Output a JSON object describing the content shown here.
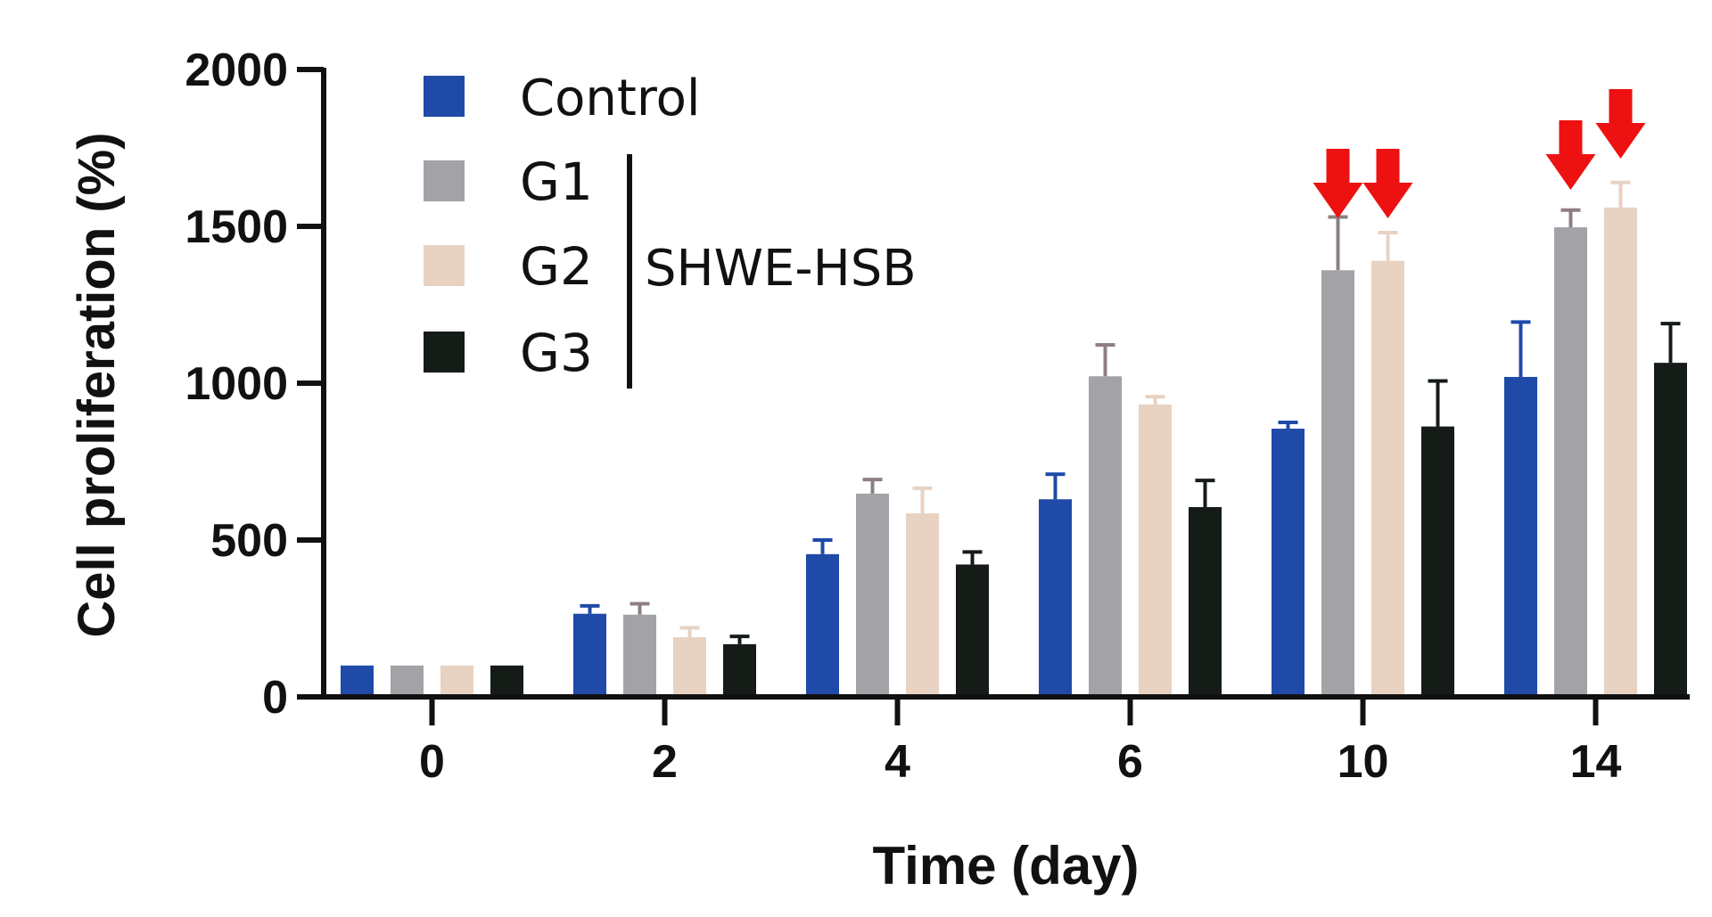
{
  "chart_data": {
    "type": "bar",
    "title": "",
    "xlabel": "Time (day)",
    "ylabel": "Cell proliferation (%)",
    "categories": [
      "0",
      "2",
      "4",
      "6",
      "10",
      "14"
    ],
    "ylim": [
      0,
      2000
    ],
    "yticks": [
      0,
      500,
      1000,
      1500,
      2000
    ],
    "grid": false,
    "legend_position": "top-left",
    "series": [
      {
        "name": "Control",
        "color": "#1f4aa8",
        "values": [
          100,
          265,
          455,
          630,
          855,
          1020
        ],
        "errors": [
          0,
          25,
          45,
          80,
          20,
          175
        ]
      },
      {
        "name": "G1",
        "color": "#a3a2a7",
        "values": [
          100,
          262,
          648,
          1022,
          1360,
          1497
        ],
        "errors": [
          0,
          35,
          45,
          100,
          170,
          55
        ]
      },
      {
        "name": "G2",
        "color": "#e8d2c2",
        "values": [
          100,
          190,
          585,
          932,
          1390,
          1560
        ],
        "errors": [
          0,
          30,
          80,
          25,
          90,
          80
        ]
      },
      {
        "name": "G3",
        "color": "#151b17",
        "values": [
          100,
          168,
          422,
          605,
          862,
          1065
        ],
        "errors": [
          0,
          25,
          40,
          85,
          145,
          125
        ]
      }
    ],
    "group_label": "SHWE-HSB",
    "group_members": [
      "G1",
      "G2",
      "G3"
    ],
    "annotations": [
      {
        "type": "arrow-down",
        "color": "#ee1111",
        "category": "10",
        "series": "G1"
      },
      {
        "type": "arrow-down",
        "color": "#ee1111",
        "category": "10",
        "series": "G2"
      },
      {
        "type": "arrow-down",
        "color": "#ee1111",
        "category": "14",
        "series": "G1"
      },
      {
        "type": "arrow-down",
        "color": "#ee1111",
        "category": "14",
        "series": "G2"
      }
    ]
  }
}
